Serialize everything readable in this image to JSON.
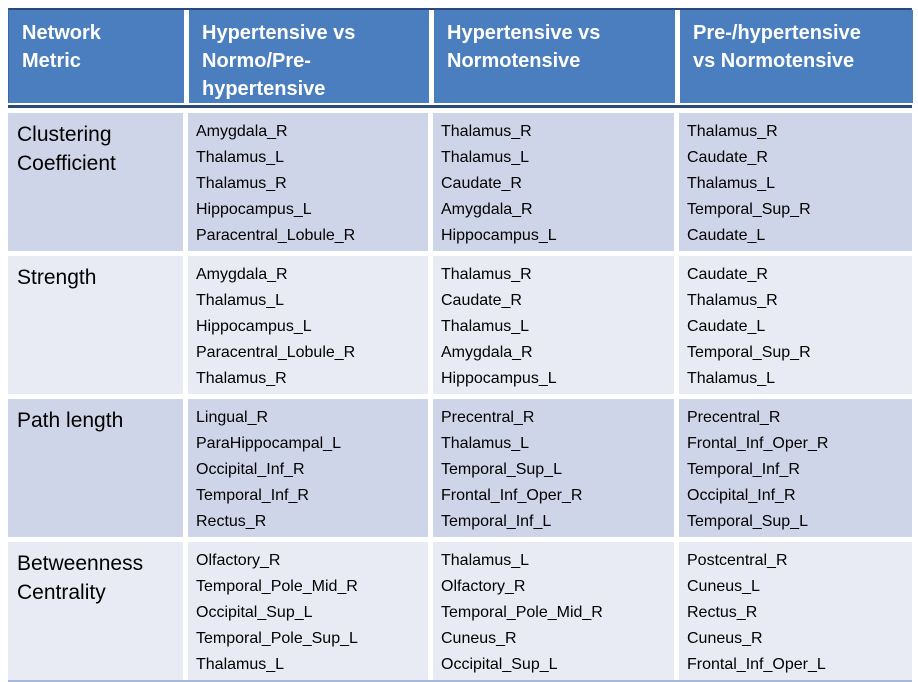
{
  "table": {
    "headers": [
      "Network Metric",
      "Hypertensive vs Normo/Pre-hypertensive",
      "Hypertensive vs Normotensive",
      "Pre-/hypertensive vs Normotensive"
    ],
    "rows": [
      {
        "metric": "Clustering Coefficient",
        "cells": [
          [
            "Amygdala_R",
            "Thalamus_L",
            "Thalamus_R",
            "Hippocampus_L",
            "Paracentral_Lobule_R"
          ],
          [
            "Thalamus_R",
            "Thalamus_L",
            "Caudate_R",
            "Amygdala_R",
            "Hippocampus_L"
          ],
          [
            "Thalamus_R",
            "Caudate_R",
            "Thalamus_L",
            "Temporal_Sup_R",
            "Caudate_L"
          ]
        ]
      },
      {
        "metric": "Strength",
        "cells": [
          [
            "Amygdala_R",
            "Thalamus_L",
            "Hippocampus_L",
            "Paracentral_Lobule_R",
            "Thalamus_R"
          ],
          [
            "Thalamus_R",
            "Caudate_R",
            "Thalamus_L",
            "Amygdala_R",
            "Hippocampus_L"
          ],
          [
            "Caudate_R",
            "Thalamus_R",
            "Caudate_L",
            "Temporal_Sup_R",
            "Thalamus_L"
          ]
        ]
      },
      {
        "metric": "Path length",
        "cells": [
          [
            "Lingual_R",
            "ParaHippocampal_L",
            "Occipital_Inf_R",
            "Temporal_Inf_R",
            "Rectus_R"
          ],
          [
            "Precentral_R",
            "Thalamus_L",
            "Temporal_Sup_L",
            "Frontal_Inf_Oper_R",
            "Temporal_Inf_L"
          ],
          [
            "Precentral_R",
            "Frontal_Inf_Oper_R",
            "Temporal_Inf_R",
            "Occipital_Inf_R",
            "Temporal_Sup_L"
          ]
        ]
      },
      {
        "metric": "Betweenness Centrality",
        "cells": [
          [
            "Olfactory_R",
            "Temporal_Pole_Mid_R",
            "Occipital_Sup_L",
            "Temporal_Pole_Sup_L",
            "Thalamus_L"
          ],
          [
            "Thalamus_L",
            "Olfactory_R",
            "Temporal_Pole_Mid_R",
            "Cuneus_R",
            "Occipital_Sup_L"
          ],
          [
            "Postcentral_R",
            "Cuneus_L",
            "Rectus_R",
            "Cuneus_R",
            "Frontal_Inf_Oper_L"
          ]
        ]
      }
    ],
    "colors": {
      "header_bg": "#4A7EBE",
      "header_text": "#FFFFFF",
      "dark_border": "#2A4A7C",
      "band_dark": "#CFD5E8",
      "band_light": "#E9EBF4",
      "bottom_border": "#A7B8DA",
      "body_text": "#000000"
    }
  }
}
